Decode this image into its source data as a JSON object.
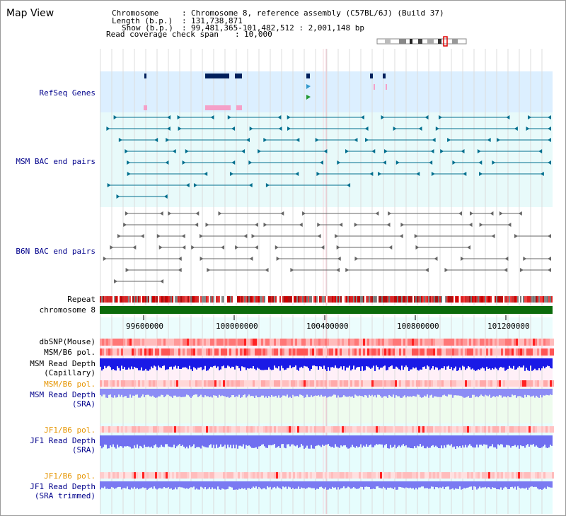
{
  "title": "Map View",
  "info": {
    "chromosome_key": "Chromosome",
    "chromosome_val": "Chromosome 8, reference assembly (C57BL/6J) (Build 37)",
    "length_key": "Length (b.p.)",
    "length_val": "131,738,871",
    "show_key": "Show (b.p.)",
    "show_val": "99,481,365-101,482,512 : 2,001,148 bp",
    "coverage_key": "Read coverage check span",
    "coverage_val": "10,000"
  },
  "tracks": {
    "refseq": "RefSeq Genes",
    "msm_bac": "MSM BAC end pairs",
    "b6n_bac": "B6N BAC end pairs",
    "repeat": "Repeat",
    "chromosome": "chromosome 8",
    "dbsnp": "dbSNP(Mouse)",
    "msm_b6_pol": "MSM/B6 pol.",
    "msm_depth_cap_1": "MSM Read Depth",
    "msm_depth_cap_2": "(Capillary)",
    "msm_b6_pol_2": "MSM/B6 pol.",
    "msm_depth_sra_1": "MSM Read Depth",
    "msm_depth_sra_2": "(SRA)",
    "jf1_pol": "JF1/B6 pol.",
    "jf1_depth_sra_1": "JF1 Read Depth",
    "jf1_depth_sra_2": "(SRA)",
    "jf1_pol_2": "JF1/B6 pol.",
    "jf1_depth_trim_1": "JF1 Read Depth",
    "jf1_depth_trim_2": "(SRA trimmed)"
  },
  "axis_ticks": [
    "99600000",
    "100000000",
    "100400000",
    "100800000",
    "101200000"
  ],
  "colors": {
    "refseq_bg": "#dcefff",
    "msm_bac_line": "#006f8e",
    "b6n_bac_line": "#666666",
    "chromosome_bar": "#0b6b0b",
    "snp": "#ff5555",
    "depth_blue": "#1a1ae6",
    "depth_light": "#8c8cf5",
    "label_navy": "#00008b",
    "label_orange": "#e69500"
  }
}
